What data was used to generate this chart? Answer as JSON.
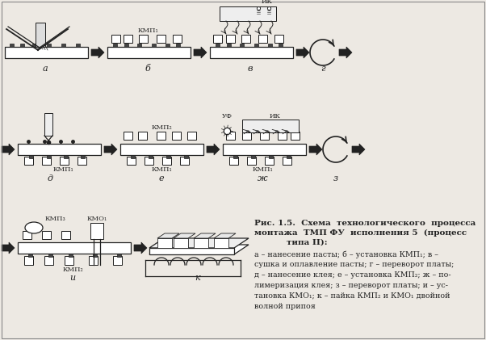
{
  "title_line1": "Рис. 1.5.  Схема  технологического  процесса",
  "title_line2": "монтажа  ТМП ФУ  исполнения 5  (процесс",
  "title_line3": "типа II):",
  "caption": "а – нанесение пасты; б – установка КМП₁; в –\nсушка и оплавление пасты; г – переворот платы;\nд – нанесение клея; е – установка КМП₂; ж – по-\nлимеризация клея; з – переворот платы; и – ус-\nтановка КМО₁; к – пайка КМП₂ и КМО₁ двойной\nволной припоя",
  "bg_color": "#ede9e3",
  "line_color": "#222222",
  "board_color": "white",
  "comp_color": "white",
  "dark_color": "#444444"
}
